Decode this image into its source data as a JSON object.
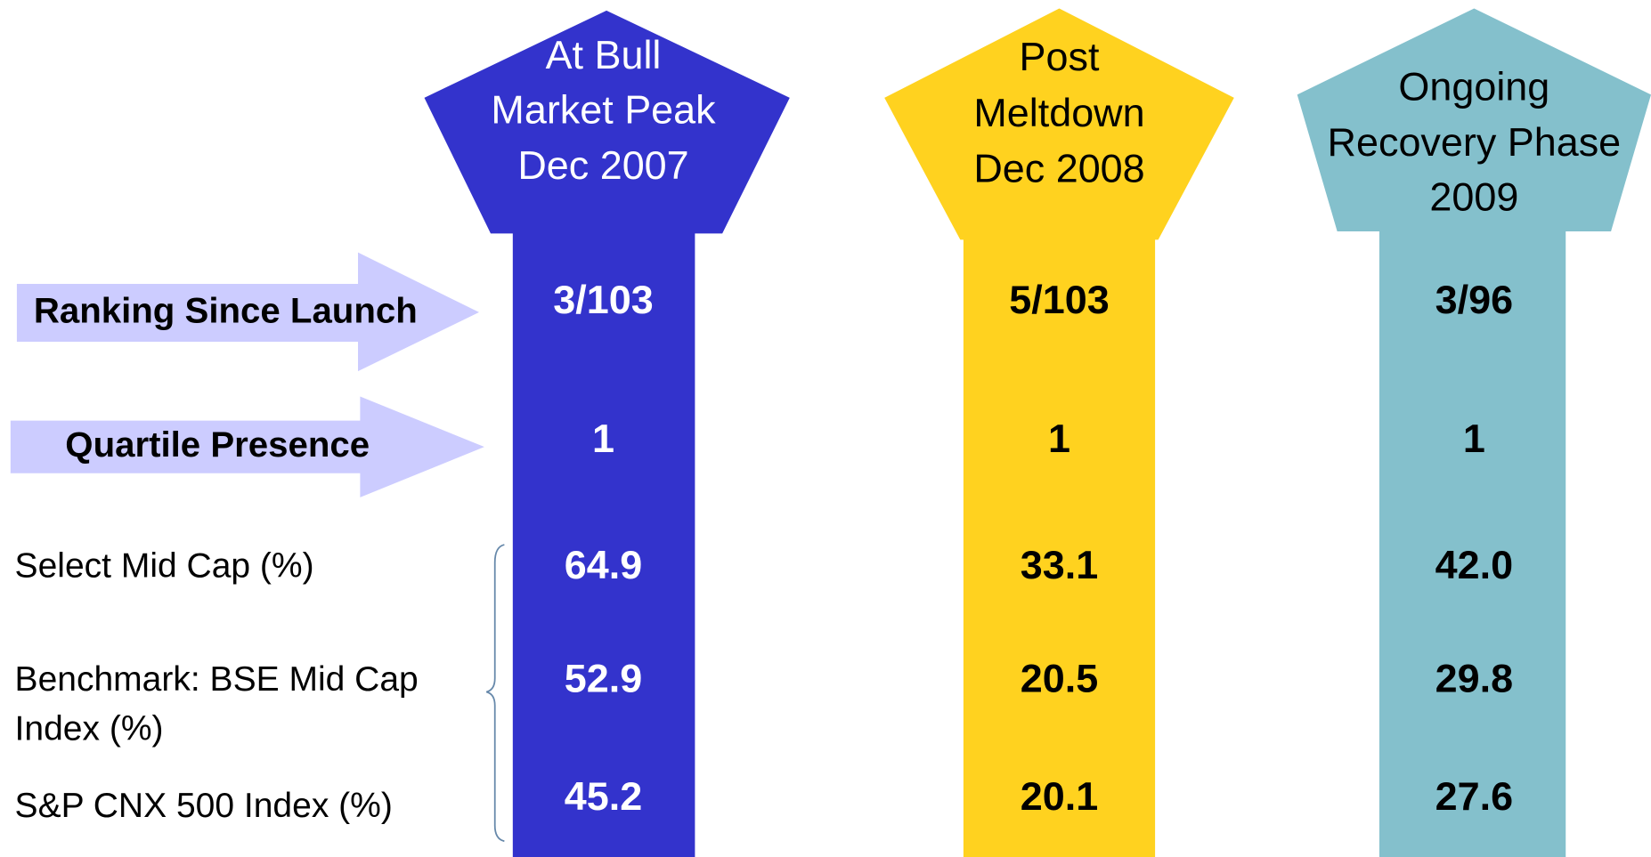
{
  "columns": [
    {
      "header": [
        "At Bull",
        "Market Peak",
        "Dec 2007"
      ],
      "values": [
        "3/103",
        "1",
        "64.9",
        "52.9",
        "45.2"
      ]
    },
    {
      "header": [
        "Post",
        "Meltdown",
        "Dec 2008"
      ],
      "values": [
        "5/103",
        "1",
        "33.1",
        "20.5",
        "20.1"
      ]
    },
    {
      "header": [
        "Ongoing",
        "Recovery Phase",
        "2009"
      ],
      "values": [
        "3/96",
        "1",
        "42.0",
        "29.8",
        "27.6"
      ]
    }
  ],
  "rows": [
    {
      "label": [
        "Ranking Since Launch"
      ]
    },
    {
      "label": [
        "Quartile Presence"
      ]
    },
    {
      "label": [
        "Select Mid Cap (%)"
      ]
    },
    {
      "label": [
        "Benchmark: BSE Mid Cap",
        "Index (%)"
      ]
    },
    {
      "label": [
        "S&P CNX 500 Index (%)"
      ]
    }
  ]
}
